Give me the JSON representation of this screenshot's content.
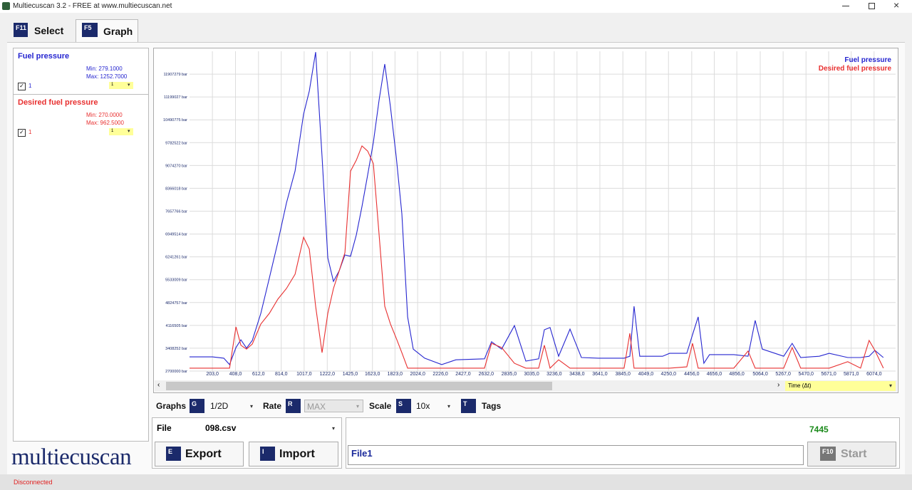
{
  "window_title": "Multiecuscan 3.2 - FREE at www.multiecuscan.net",
  "tabs": [
    {
      "key": "F11",
      "label": "Select"
    },
    {
      "key": "F5",
      "label": "Graph"
    }
  ],
  "parameters": [
    {
      "name": "Fuel pressure",
      "min": "Min: 279.1000",
      "max": "Max: 1252.7000",
      "check_label": "1",
      "select": "1"
    },
    {
      "name": "Desired fuel pressure",
      "min": "Min: 270.0000",
      "max": "Max: 962.5000",
      "check_label": "1",
      "select": "1"
    }
  ],
  "chart_data": {
    "type": "line",
    "x": [
      0,
      102,
      203,
      304,
      355,
      412,
      456,
      506,
      557,
      633,
      709,
      784,
      860,
      936,
      1012,
      1063,
      1119,
      1176,
      1227,
      1277,
      1328,
      1379,
      1429,
      1480,
      1530,
      1581,
      1631,
      1682,
      1732,
      1783,
      1834,
      1884,
      1935,
      1985,
      2086,
      2238,
      2364,
      2617,
      2680,
      2769,
      2883,
      2984,
      3098,
      3148,
      3199,
      3275,
      3376,
      3477,
      3628,
      3856,
      3907,
      3944,
      3995,
      4197,
      4260,
      4412,
      4463,
      4513,
      4564,
      4614,
      4829,
      4956,
      5019,
      5082,
      5272,
      5347,
      5423,
      5588,
      5676,
      5840,
      5954,
      6030,
      6081,
      6156
    ],
    "series": [
      {
        "name": "Fuel pressure",
        "color": "#2626d0",
        "values": [
          3140000,
          3140000,
          3140000,
          3100000,
          2900000,
          3430000,
          3670000,
          3410000,
          3650000,
          4490000,
          5590000,
          6700000,
          7910000,
          8900000,
          10670000,
          11380000,
          12590000,
          9350000,
          6210000,
          5480000,
          5810000,
          6300000,
          6260000,
          6920000,
          7800000,
          8790000,
          9790000,
          11110000,
          12220000,
          10890000,
          9350000,
          7580000,
          4380000,
          3380000,
          3100000,
          2900000,
          3050000,
          3080000,
          3610000,
          3380000,
          4110000,
          3010000,
          3080000,
          3980000,
          4050000,
          3160000,
          4000000,
          3120000,
          3100000,
          3100000,
          3160000,
          4710000,
          3160000,
          3160000,
          3250000,
          3250000,
          3830000,
          4380000,
          2940000,
          3210000,
          3210000,
          3160000,
          4270000,
          3380000,
          3160000,
          3560000,
          3120000,
          3160000,
          3250000,
          3120000,
          3120000,
          3160000,
          3340000,
          3120000
        ]
      },
      {
        "name": "Desired fuel pressure",
        "color": "#e83030",
        "values": [
          2790000,
          2790000,
          2790000,
          2790000,
          2790000,
          4070000,
          3500000,
          3380000,
          3540000,
          4160000,
          4490000,
          4930000,
          5260000,
          5700000,
          6850000,
          6480000,
          4710000,
          3270000,
          4490000,
          5260000,
          5810000,
          6370000,
          8900000,
          9240000,
          9680000,
          9520000,
          9130000,
          6920000,
          4710000,
          4160000,
          3720000,
          3270000,
          2790000,
          2790000,
          2790000,
          2790000,
          2790000,
          2790000,
          3560000,
          3430000,
          2940000,
          2790000,
          2790000,
          3500000,
          2790000,
          3050000,
          2790000,
          2790000,
          2790000,
          2790000,
          3870000,
          2790000,
          2790000,
          2790000,
          2790000,
          2830000,
          3560000,
          2790000,
          2790000,
          2790000,
          2790000,
          3320000,
          2790000,
          2790000,
          2790000,
          3430000,
          2790000,
          2790000,
          2790000,
          2990000,
          2790000,
          3650000,
          3340000,
          2790000
        ]
      }
    ],
    "xlim": [
      0,
      6265
    ],
    "xticks": [
      {
        "value": 203,
        "label": "203,0"
      },
      {
        "value": 408,
        "label": "408,0"
      },
      {
        "value": 612,
        "label": "612,0"
      },
      {
        "value": 814,
        "label": "814,0"
      },
      {
        "value": 1017,
        "label": "1017,0"
      },
      {
        "value": 1222,
        "label": "1222,0"
      },
      {
        "value": 1425,
        "label": "1425,0"
      },
      {
        "value": 1623,
        "label": "1623,0"
      },
      {
        "value": 1823,
        "label": "1823,0"
      },
      {
        "value": 2024,
        "label": "2024,0"
      },
      {
        "value": 2226,
        "label": "2226,0"
      },
      {
        "value": 2427,
        "label": "2427,0"
      },
      {
        "value": 2632,
        "label": "2632,0"
      },
      {
        "value": 2835,
        "label": "2835,0"
      },
      {
        "value": 3035,
        "label": "3035,0"
      },
      {
        "value": 3236,
        "label": "3236,0"
      },
      {
        "value": 3438,
        "label": "3438,0"
      },
      {
        "value": 3641,
        "label": "3641,0"
      },
      {
        "value": 3845,
        "label": "3845,0"
      },
      {
        "value": 4049,
        "label": "4049,0"
      },
      {
        "value": 4250,
        "label": "4250,0"
      },
      {
        "value": 4456,
        "label": "4456,0"
      },
      {
        "value": 4656,
        "label": "4656,0"
      },
      {
        "value": 4856,
        "label": "4856,0"
      },
      {
        "value": 5064,
        "label": "5064,0"
      },
      {
        "value": 5267,
        "label": "5267,0"
      },
      {
        "value": 5470,
        "label": "5470,0"
      },
      {
        "value": 5671,
        "label": "5671,0"
      },
      {
        "value": 5871,
        "label": "5871,0"
      },
      {
        "value": 6074,
        "label": "6074,0"
      }
    ],
    "ylim": [
      2700000,
      12615531
    ],
    "yticks": [
      {
        "value": 2700000,
        "label": "2700000 bar"
      },
      {
        "value": 3408252,
        "label": "3408252 bar"
      },
      {
        "value": 4116505,
        "label": "4116505 bar"
      },
      {
        "value": 4824757,
        "label": "4824757 bar"
      },
      {
        "value": 5533009,
        "label": "5533009 bar"
      },
      {
        "value": 6241261,
        "label": "6241261 bar"
      },
      {
        "value": 6949514,
        "label": "6949514 bar"
      },
      {
        "value": 7657766,
        "label": "7657766 bar"
      },
      {
        "value": 8366018,
        "label": "8366018 bar"
      },
      {
        "value": 9074270,
        "label": "9074270 bar"
      },
      {
        "value": 9782522,
        "label": "9782522 bar"
      },
      {
        "value": 10490775,
        "label": "10490775 bar"
      },
      {
        "value": 11199027,
        "label": "11199027 bar"
      },
      {
        "value": 11907279,
        "label": "11907279 bar"
      }
    ],
    "grid": true,
    "legend": "top-right"
  },
  "time_axis_label": "Time (Δt)",
  "controls": {
    "graphs": {
      "label": "Graphs",
      "key": "G",
      "value": "1/2D"
    },
    "rate": {
      "label": "Rate",
      "key": "R",
      "value": "MAX"
    },
    "scale": {
      "label": "Scale",
      "key": "S",
      "value": "10x"
    },
    "tags": {
      "label": "Tags",
      "key": "T"
    }
  },
  "file": {
    "label": "File",
    "value": "098.csv"
  },
  "buttons": {
    "export": {
      "key": "E",
      "label": "Export"
    },
    "import": {
      "key": "I",
      "label": "Import"
    },
    "start": {
      "key": "F10",
      "label": "Start"
    }
  },
  "counter": "7445",
  "file_name": "File1",
  "logo": "multiecuscan",
  "status": "Disconnected"
}
